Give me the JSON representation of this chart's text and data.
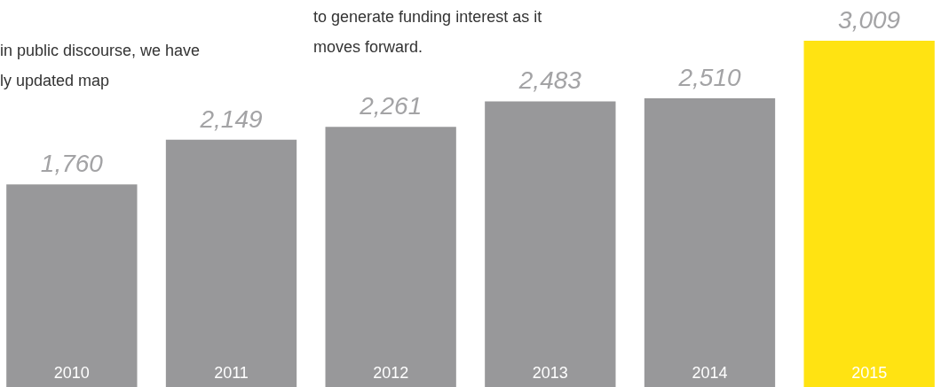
{
  "chart_data": {
    "type": "bar",
    "categories": [
      "2010",
      "2011",
      "2012",
      "2013",
      "2014",
      "2015"
    ],
    "values": [
      1760,
      2149,
      2261,
      2483,
      2510,
      3009
    ],
    "colors": [
      "#98989a",
      "#98989a",
      "#98989a",
      "#98989a",
      "#98989a",
      "#ffe312"
    ],
    "value_labels": [
      "1,760",
      "2,149",
      "2,261",
      "2,483",
      "2,510",
      "3,009"
    ],
    "annotations": [
      "in public discourse, we have\nly updated map",
      "to generate funding interest as it\nmoves forward."
    ]
  }
}
